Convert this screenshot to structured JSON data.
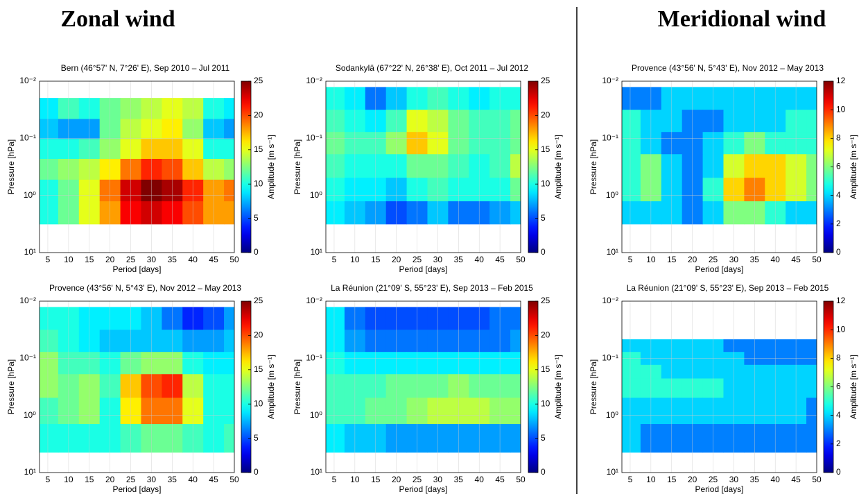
{
  "headings": [
    "Zonal wind",
    "Meridional wind"
  ],
  "chart_data": [
    {
      "type": "heatmap",
      "title": "Bern (46°57' N, 7°26' E), Sep 2010 – Jul 2011",
      "xlabel": "Period [days]",
      "ylabel": "Pressure [hPa]",
      "colorbar_label": "Amplitude [m s⁻¹]",
      "x": [
        5,
        10,
        15,
        20,
        25,
        30,
        35,
        40,
        45,
        50
      ],
      "y": [
        0.03,
        0.07,
        0.15,
        0.35,
        0.8,
        2
      ],
      "values": [
        [
          9,
          11,
          10,
          12,
          13,
          14,
          15,
          14,
          10,
          9
        ],
        [
          8,
          7,
          7,
          12,
          14,
          15,
          16,
          13,
          8,
          7
        ],
        [
          10,
          10,
          11,
          13,
          15,
          17,
          17,
          15,
          10,
          10
        ],
        [
          12,
          13,
          14,
          16,
          19,
          21,
          20,
          17,
          14,
          13
        ],
        [
          10,
          12,
          15,
          19,
          23,
          25,
          24,
          21,
          18,
          19
        ],
        [
          10,
          12,
          15,
          18,
          22,
          23,
          22,
          20,
          18,
          18
        ]
      ],
      "xlim": [
        3,
        50
      ],
      "xticks": [
        5,
        10,
        15,
        20,
        25,
        30,
        35,
        40,
        45,
        50
      ],
      "ylim": [
        10,
        0.01
      ],
      "ylog": true,
      "yticks": [
        {
          "value": 10,
          "label": "10¹"
        },
        {
          "value": 1,
          "label": "10⁰"
        },
        {
          "value": 0.1,
          "label": "10⁻¹"
        },
        {
          "value": 0.01,
          "label": "10⁻²"
        }
      ],
      "clim": [
        0,
        25
      ],
      "cticks": [
        0,
        5,
        10,
        15,
        20,
        25
      ],
      "colormap": "jet",
      "grid": true
    },
    {
      "type": "heatmap",
      "title": "Sodankylä (67°22' N, 26°38' E), Oct 2011 – Jul 2012",
      "xlabel": "Period [days]",
      "ylabel": "Pressure [hPa]",
      "colorbar_label": "Amplitude [m s⁻¹]",
      "x": [
        5,
        10,
        15,
        20,
        25,
        30,
        35,
        40,
        45,
        50
      ],
      "y": [
        0.02,
        0.05,
        0.12,
        0.3,
        0.8,
        2
      ],
      "values": [
        [
          10,
          9,
          6,
          8,
          10,
          11,
          10,
          9,
          10,
          10
        ],
        [
          11,
          10,
          9,
          11,
          15,
          14,
          12,
          11,
          11,
          12
        ],
        [
          12,
          11,
          11,
          13,
          17,
          15,
          12,
          11,
          11,
          12
        ],
        [
          11,
          10,
          10,
          10,
          12,
          12,
          11,
          10,
          11,
          14
        ],
        [
          10,
          9,
          9,
          8,
          10,
          11,
          10,
          10,
          10,
          12
        ],
        [
          9,
          8,
          7,
          5,
          6,
          8,
          6,
          6,
          7,
          8
        ]
      ],
      "xlim": [
        3,
        50
      ],
      "xticks": [
        5,
        10,
        15,
        20,
        25,
        30,
        35,
        40,
        45,
        50
      ],
      "ylim": [
        10,
        0.01
      ],
      "ylog": true,
      "yticks": [
        {
          "value": 10,
          "label": "10¹"
        },
        {
          "value": 1,
          "label": "10⁰"
        },
        {
          "value": 0.1,
          "label": "10⁻¹"
        },
        {
          "value": 0.01,
          "label": "10⁻²"
        }
      ],
      "clim": [
        0,
        25
      ],
      "cticks": [
        0,
        5,
        10,
        15,
        20,
        25
      ],
      "colormap": "jet",
      "grid": true
    },
    {
      "type": "heatmap",
      "title": "Provence (43°56' N, 5°43' E), Nov 2012 – May 2013",
      "xlabel": "Period [days]",
      "ylabel": "Pressure [hPa]",
      "colorbar_label": "Amplitude [m s⁻¹]",
      "x": [
        5,
        10,
        15,
        20,
        25,
        30,
        35,
        40,
        45,
        50
      ],
      "y": [
        0.02,
        0.05,
        0.12,
        0.3,
        0.8,
        2
      ],
      "values": [
        [
          3,
          3,
          4,
          4,
          4,
          4,
          4,
          4,
          4,
          4
        ],
        [
          5,
          4,
          4,
          3,
          3,
          4,
          4,
          4,
          5,
          5
        ],
        [
          5,
          4,
          3,
          3,
          4,
          5,
          6,
          5,
          5,
          5
        ],
        [
          5,
          6,
          4,
          3,
          4,
          7,
          8,
          8,
          7,
          6
        ],
        [
          5,
          6,
          4,
          3,
          5,
          8,
          9,
          8,
          7,
          6
        ],
        [
          4,
          4,
          4,
          3,
          4,
          6,
          6,
          5,
          4,
          4
        ]
      ],
      "xlim": [
        3,
        50
      ],
      "xticks": [
        5,
        10,
        15,
        20,
        25,
        30,
        35,
        40,
        45,
        50
      ],
      "ylim": [
        10,
        0.01
      ],
      "ylog": true,
      "yticks": [
        {
          "value": 10,
          "label": "10¹"
        },
        {
          "value": 1,
          "label": "10⁰"
        },
        {
          "value": 0.1,
          "label": "10⁻¹"
        },
        {
          "value": 0.01,
          "label": "10⁻²"
        }
      ],
      "clim": [
        0,
        12
      ],
      "cticks": [
        0,
        2,
        4,
        6,
        8,
        10,
        12
      ],
      "colormap": "jet",
      "grid": true
    },
    {
      "type": "heatmap",
      "title": "Provence (43°56' N, 5°43' E), Nov 2012 – May 2013",
      "xlabel": "Period [days]",
      "ylabel": "Pressure [hPa]",
      "colorbar_label": "Amplitude [m s⁻¹]",
      "x": [
        5,
        10,
        15,
        20,
        25,
        30,
        35,
        40,
        45,
        50
      ],
      "y": [
        0.02,
        0.05,
        0.12,
        0.3,
        0.8,
        2.5
      ],
      "values": [
        [
          10,
          10,
          9,
          9,
          9,
          8,
          6,
          4,
          5,
          7
        ],
        [
          11,
          10,
          9,
          8,
          8,
          8,
          8,
          7,
          7,
          8
        ],
        [
          13,
          11,
          11,
          10,
          12,
          13,
          13,
          10,
          9,
          9
        ],
        [
          13,
          12,
          13,
          11,
          17,
          20,
          21,
          14,
          10,
          10
        ],
        [
          11,
          12,
          13,
          10,
          16,
          19,
          19,
          15,
          10,
          10
        ],
        [
          10,
          10,
          10,
          10,
          11,
          12,
          12,
          11,
          10,
          11
        ]
      ],
      "xlim": [
        3,
        50
      ],
      "xticks": [
        5,
        10,
        15,
        20,
        25,
        30,
        35,
        40,
        45,
        50
      ],
      "ylim": [
        10,
        0.01
      ],
      "ylog": true,
      "yticks": [
        {
          "value": 10,
          "label": "10¹"
        },
        {
          "value": 1,
          "label": "10⁰"
        },
        {
          "value": 0.1,
          "label": "10⁻¹"
        },
        {
          "value": 0.01,
          "label": "10⁻²"
        }
      ],
      "clim": [
        0,
        25
      ],
      "cticks": [
        0,
        5,
        10,
        15,
        20,
        25
      ],
      "colormap": "jet",
      "grid": true
    },
    {
      "type": "heatmap",
      "title": "La Réunion (21°09' S, 55°23' E), Sep 2013 – Feb 2015",
      "xlabel": "Period [days]",
      "ylabel": "Pressure [hPa]",
      "colorbar_label": "Amplitude [m s⁻¹]",
      "x": [
        5,
        10,
        15,
        20,
        25,
        30,
        35,
        40,
        45,
        50
      ],
      "y": [
        0.02,
        0.05,
        0.12,
        0.3,
        0.8,
        2.5
      ],
      "values": [
        [
          9,
          6,
          5,
          5,
          5,
          5,
          5,
          5,
          6,
          6
        ],
        [
          9,
          7,
          6,
          6,
          6,
          6,
          6,
          6,
          6,
          7
        ],
        [
          10,
          9,
          9,
          9,
          9,
          9,
          9,
          9,
          9,
          9
        ],
        [
          11,
          11,
          11,
          12,
          12,
          12,
          13,
          12,
          12,
          12
        ],
        [
          11,
          11,
          12,
          12,
          13,
          14,
          14,
          14,
          13,
          13
        ],
        [
          9,
          8,
          8,
          7,
          7,
          7,
          7,
          7,
          7,
          7
        ]
      ],
      "xlim": [
        3,
        50
      ],
      "xticks": [
        5,
        10,
        15,
        20,
        25,
        30,
        35,
        40,
        45,
        50
      ],
      "ylim": [
        10,
        0.01
      ],
      "ylog": true,
      "yticks": [
        {
          "value": 10,
          "label": "10¹"
        },
        {
          "value": 1,
          "label": "10⁰"
        },
        {
          "value": 0.1,
          "label": "10⁻¹"
        },
        {
          "value": 0.01,
          "label": "10⁻²"
        }
      ],
      "clim": [
        0,
        25
      ],
      "cticks": [
        0,
        5,
        10,
        15,
        20,
        25
      ],
      "colormap": "jet",
      "grid": true
    },
    {
      "type": "heatmap",
      "title": "La Réunion (21°09' S, 55°23' E), Sep 2013 – Feb 2015",
      "xlabel": "Period [days]",
      "ylabel": "Pressure [hPa]",
      "colorbar_label": "Amplitude [m s⁻¹]",
      "x": [
        5,
        10,
        15,
        20,
        25,
        30,
        35,
        40,
        45,
        50
      ],
      "y": [
        0.06,
        0.1,
        0.17,
        0.3,
        0.8,
        2.5
      ],
      "values": [
        [
          4,
          4,
          4,
          4,
          4,
          3,
          3,
          3,
          3,
          3
        ],
        [
          5,
          4,
          4,
          4,
          4,
          4,
          3,
          3,
          3,
          3
        ],
        [
          5,
          5,
          4,
          4,
          4,
          4,
          4,
          4,
          4,
          4
        ],
        [
          5,
          5,
          5,
          5,
          5,
          4,
          4,
          4,
          4,
          4
        ],
        [
          4,
          4,
          4,
          4,
          4,
          4,
          4,
          4,
          4,
          3
        ],
        [
          4,
          3,
          3,
          3,
          3,
          3,
          3,
          3,
          3,
          3
        ]
      ],
      "xlim": [
        3,
        50
      ],
      "xticks": [
        5,
        10,
        15,
        20,
        25,
        30,
        35,
        40,
        45,
        50
      ],
      "ylim": [
        10,
        0.01
      ],
      "ylog": true,
      "yticks": [
        {
          "value": 10,
          "label": "10¹"
        },
        {
          "value": 1,
          "label": "10⁰"
        },
        {
          "value": 0.1,
          "label": "10⁻¹"
        },
        {
          "value": 0.01,
          "label": "10⁻²"
        }
      ],
      "clim": [
        0,
        12
      ],
      "cticks": [
        0,
        2,
        4,
        6,
        8,
        10,
        12
      ],
      "colormap": "jet",
      "grid": true
    }
  ]
}
